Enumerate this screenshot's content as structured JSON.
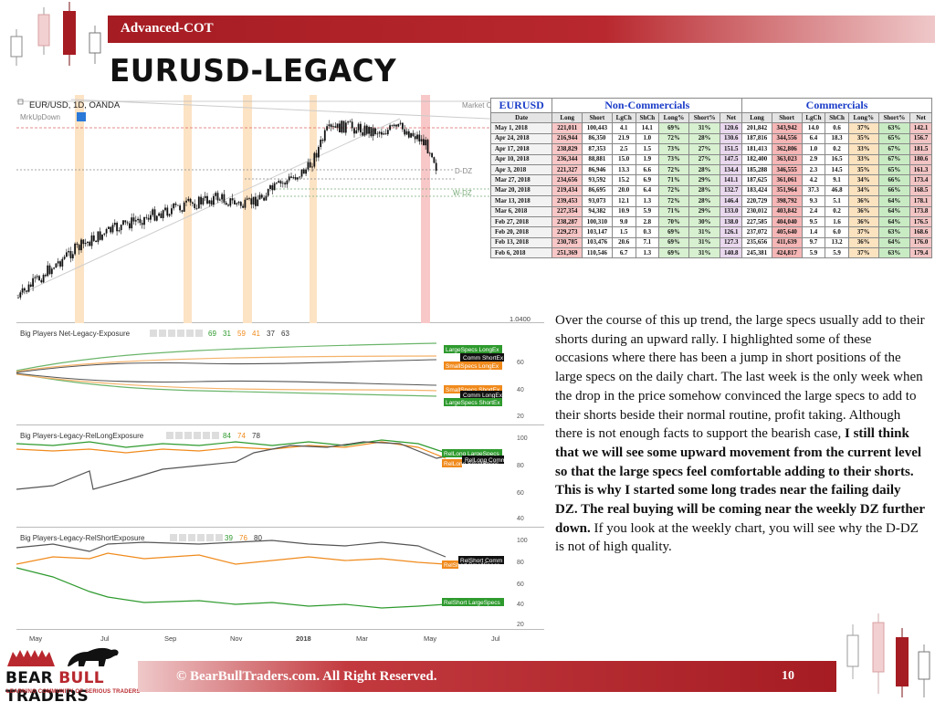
{
  "header": {
    "banner_label": "Advanced-COT",
    "title": "EURUSD-LEGACY"
  },
  "colors": {
    "brand_red": "#a51c22",
    "large_specs_green": "#2e9a2e",
    "comm_orange": "#f08a1c",
    "highlight_orange": "#f9d9b2",
    "highlight_red": "#f5b8b8"
  },
  "price_chart": {
    "symbol_label": "EUR/USD, 1D, OANDA",
    "indicator_label": "MrkUpDown",
    "market_label": "Market C",
    "ddz_label": "D-DZ",
    "wdz_label": "W-DZ",
    "bottom_tick": "1.0400"
  },
  "indicators": [
    {
      "title": "Big Players Net-Legacy-Exposure",
      "values": [
        "69",
        "31",
        "59",
        "41",
        "37",
        "63"
      ],
      "tags": [
        "LargeSpecs LongEx",
        "Comm ShortEx",
        "SmallSpecs LongEx",
        "SmallSpecs ShortEx",
        "Comm LongEx",
        "LargeSpecs ShortEx"
      ],
      "ticks": [
        "60",
        "40",
        "20"
      ]
    },
    {
      "title": "Big Players-Legacy-RelLongExposure",
      "values": [
        "84",
        "74",
        "78"
      ],
      "tags": [
        "RelLong LargeSpecs",
        "RelLong Comm",
        "RelLong SmallSpecs"
      ],
      "ticks": [
        "100",
        "80",
        "60",
        "40"
      ]
    },
    {
      "title": "Big Players-Legacy-RelShortExposure",
      "values": [
        "39",
        "76",
        "80"
      ],
      "tags": [
        "RelShort Comm",
        "RelShort SmallSpecs",
        "RelShort LargeSpecs"
      ],
      "ticks": [
        "100",
        "80",
        "60",
        "40",
        "20"
      ]
    }
  ],
  "x_axis": [
    "May",
    "Jul",
    "Sep",
    "Nov",
    "2018",
    "Mar",
    "May",
    "Jul"
  ],
  "table": {
    "symbol": "EURUSD",
    "group_noncomm": "Non-Commercials",
    "group_comm": "Commercials",
    "columns": [
      "Date",
      "Long",
      "Short",
      "LgCh",
      "ShCh",
      "Long%",
      "Short%",
      "Net",
      "Long",
      "Short",
      "LgCh",
      "ShCh",
      "Long%",
      "Short%",
      "Net"
    ],
    "rows": [
      [
        "May 1, 2018",
        "221,011",
        "100,443",
        "4.1",
        "14.1",
        "69%",
        "31%",
        "120.6",
        "201,842",
        "343,942",
        "14.0",
        "0.6",
        "37%",
        "63%",
        "142.1"
      ],
      [
        "Apr 24, 2018",
        "216,944",
        "86,350",
        "21.9",
        "1.0",
        "72%",
        "28%",
        "130.6",
        "187,816",
        "344,556",
        "6.4",
        "18.3",
        "35%",
        "65%",
        "156.7"
      ],
      [
        "Apr 17, 2018",
        "238,829",
        "87,353",
        "2.5",
        "1.5",
        "73%",
        "27%",
        "151.5",
        "181,413",
        "362,806",
        "1.0",
        "0.2",
        "33%",
        "67%",
        "181.5"
      ],
      [
        "Apr 10, 2018",
        "236,344",
        "88,881",
        "15.0",
        "1.9",
        "73%",
        "27%",
        "147.5",
        "182,400",
        "363,023",
        "2.9",
        "16.5",
        "33%",
        "67%",
        "180.6"
      ],
      [
        "Apr 3, 2018",
        "221,327",
        "86,946",
        "13.3",
        "6.6",
        "72%",
        "28%",
        "134.4",
        "185,288",
        "346,555",
        "2.3",
        "14.5",
        "35%",
        "65%",
        "161.3"
      ],
      [
        "Mar 27, 2018",
        "234,656",
        "93,592",
        "15.2",
        "6.9",
        "71%",
        "29%",
        "141.1",
        "187,625",
        "361,061",
        "4.2",
        "9.1",
        "34%",
        "66%",
        "173.4"
      ],
      [
        "Mar 20, 2018",
        "219,434",
        "86,695",
        "20.0",
        "6.4",
        "72%",
        "28%",
        "132.7",
        "183,424",
        "351,964",
        "37.3",
        "46.8",
        "34%",
        "66%",
        "168.5"
      ],
      [
        "Mar 13, 2018",
        "239,453",
        "93,073",
        "12.1",
        "1.3",
        "72%",
        "28%",
        "146.4",
        "220,729",
        "398,792",
        "9.3",
        "5.1",
        "36%",
        "64%",
        "178.1"
      ],
      [
        "Mar 6, 2018",
        "227,354",
        "94,382",
        "10.9",
        "5.9",
        "71%",
        "29%",
        "133.0",
        "230,012",
        "403,842",
        "2.4",
        "0.2",
        "36%",
        "64%",
        "173.8"
      ],
      [
        "Feb 27, 2018",
        "238,287",
        "100,310",
        "9.0",
        "2.8",
        "70%",
        "30%",
        "138.0",
        "227,585",
        "404,040",
        "9.5",
        "1.6",
        "36%",
        "64%",
        "176.5"
      ],
      [
        "Feb 20, 2018",
        "229,273",
        "103,147",
        "1.5",
        "0.3",
        "69%",
        "31%",
        "126.1",
        "237,072",
        "405,640",
        "1.4",
        "6.0",
        "37%",
        "63%",
        "168.6"
      ],
      [
        "Feb 13, 2018",
        "230,785",
        "103,476",
        "20.6",
        "7.1",
        "69%",
        "31%",
        "127.3",
        "235,656",
        "411,639",
        "9.7",
        "13.2",
        "36%",
        "64%",
        "176.0"
      ],
      [
        "Feb 6, 2018",
        "251,369",
        "110,546",
        "6.7",
        "1.3",
        "69%",
        "31%",
        "140.8",
        "245,381",
        "424,817",
        "5.9",
        "5.9",
        "37%",
        "63%",
        "179.4"
      ]
    ]
  },
  "paragraph": {
    "normal": "Over the course of this up trend, the large specs usually add to their shorts during an upward rally. I highlighted some of these occasions where there has been a jump in short positions of the large specs on the daily chart. The last week is the only week when the drop in the price somehow convinced the large specs to add to their shorts beside their normal routine, profit taking. Although there is not enough facts to support the bearish case, ",
    "bold": "I still think that we will see some upward movement from the current level so that the large specs feel comfortable adding to  their shorts. This is why I started some long trades near the failing daily DZ. The real buying will be coming near the weekly DZ further down.",
    "tail": " If you look at the weekly chart, you will see why the D-DZ is not of high quality."
  },
  "logo": {
    "name_1": "BEAR ",
    "name_2": "BULL",
    "name_3": " TRADERS",
    "tagline": "LEARNING COMMUNITY OF SERIOUS TRADERS"
  },
  "footer": {
    "text": "© BearBullTraders.com. All Right Reserved.",
    "page_number": "10"
  }
}
